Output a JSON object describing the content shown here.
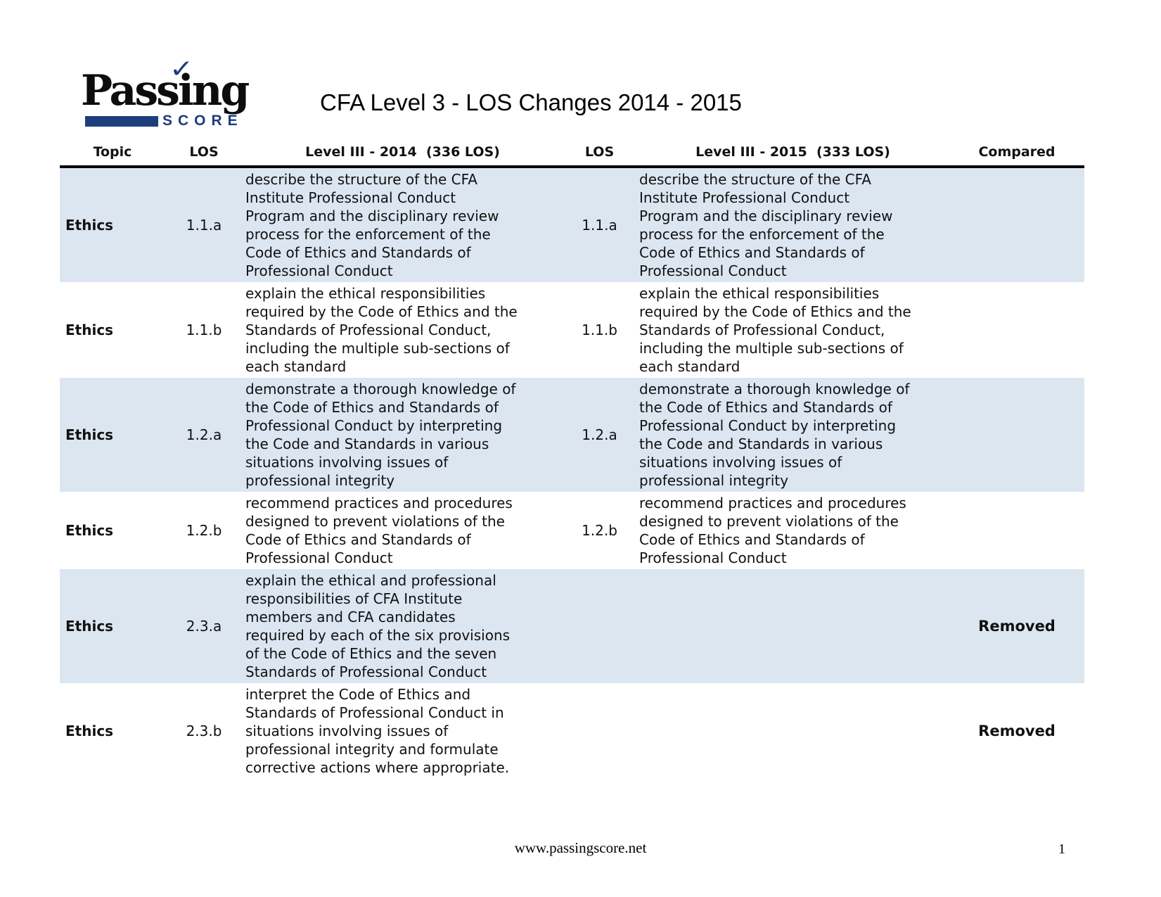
{
  "page": {
    "title": "CFA Level 3 - LOS Changes 2014 - 2015",
    "footer_url": "www.passingscore.net",
    "page_number": "1"
  },
  "logo": {
    "word": "Passing",
    "sub_word": "SCORE",
    "checkmark": "✓",
    "brand_blue": "#1e3d7b"
  },
  "table": {
    "row_stripe_color": "#dce6f1",
    "headers": {
      "topic": "Topic",
      "los_2014": "LOS",
      "level_2014": "Level III - 2014  (336 LOS)",
      "los_2015": "LOS",
      "level_2015": "Level III - 2015  (333 LOS)",
      "compared": "Compared"
    },
    "rows": [
      {
        "topic": "Ethics",
        "los_2014": "1.1.a",
        "text_2014": "describe the structure of the CFA Institute Professional Conduct Program and the disciplinary review process for the enforcement of the Code of Ethics and Standards of Professional Conduct",
        "los_2015": "1.1.a",
        "text_2015": "describe the structure of the CFA Institute Professional Conduct Program and the disciplinary review process for the enforcement of the Code of Ethics and Standards of Professional Conduct",
        "compared": ""
      },
      {
        "topic": "Ethics",
        "los_2014": "1.1.b",
        "text_2014": "explain the ethical responsibilities required by the Code of Ethics and the Standards of Professional Conduct, including the multiple sub-sections of each standard",
        "los_2015": "1.1.b",
        "text_2015": "explain the ethical responsibilities required by the Code of Ethics and the Standards of Professional Conduct, including the multiple sub-sections of each standard",
        "compared": ""
      },
      {
        "topic": "Ethics",
        "los_2014": "1.2.a",
        "text_2014": "demonstrate a thorough knowledge of the Code of Ethics and Standards of Professional Conduct by interpreting the Code and Standards in various situations involving issues of professional integrity",
        "los_2015": "1.2.a",
        "text_2015": "demonstrate a thorough knowledge of the Code of Ethics and Standards of Professional Conduct by interpreting the Code and Standards in various situations involving issues of professional integrity",
        "compared": ""
      },
      {
        "topic": "Ethics",
        "los_2014": "1.2.b",
        "text_2014": "recommend practices and procedures designed to prevent violations of the Code of Ethics and Standards of Professional Conduct",
        "los_2015": "1.2.b",
        "text_2015": "recommend practices and procedures designed to prevent violations of the Code of Ethics and Standards of Professional Conduct",
        "compared": ""
      },
      {
        "topic": "Ethics",
        "los_2014": "2.3.a",
        "text_2014": "explain the ethical and professional responsibilities of CFA Institute members and CFA candidates required by each of the six provisions of the Code of Ethics and the seven Standards of Professional Conduct",
        "los_2015": "",
        "text_2015": "",
        "compared": "Removed"
      },
      {
        "topic": "Ethics",
        "los_2014": "2.3.b",
        "text_2014": "interpret the Code of Ethics and Standards of Professional Conduct in situations involving issues of professional integrity and formulate corrective actions where appropriate.",
        "los_2015": "",
        "text_2015": "",
        "compared": "Removed"
      }
    ]
  }
}
